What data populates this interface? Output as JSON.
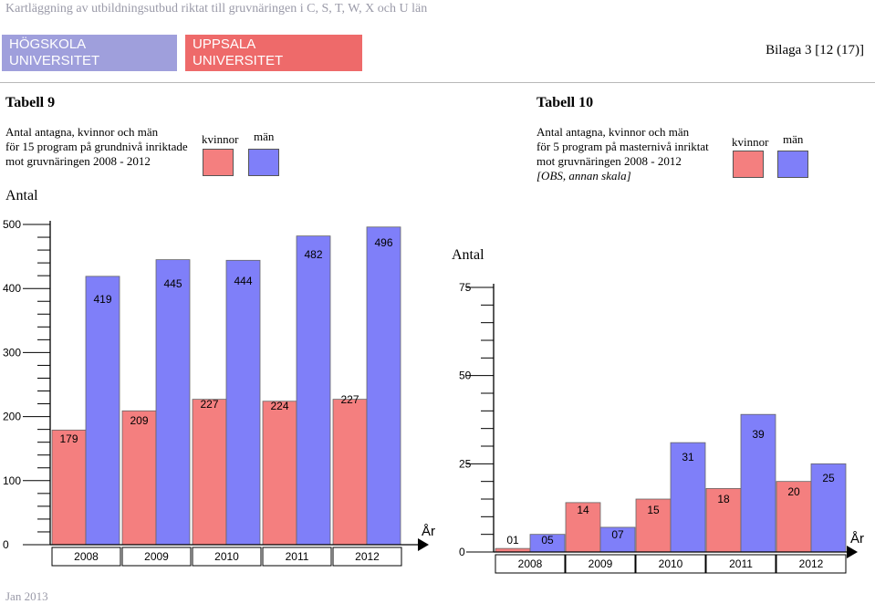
{
  "header": {
    "doc_title": "Kartläggning av utbildningsutbud riktat till gruvnäringen i C, S, T, W, X och U län",
    "logo_left": "HÖGSKOLA\nUNIVERSITET",
    "logo_right": "UPPSALA\nUNIVERSITET",
    "bilaga": "Bilaga 3 [12 (17)]"
  },
  "legend": {
    "kvinnor": "kvinnor",
    "man": "män"
  },
  "colors": {
    "kvinnor": "#f47f7f",
    "man": "#7f7ff9",
    "logo_left": "#9f9fdc",
    "logo_right": "#ee6a6a"
  },
  "footer": "Jan 2013",
  "chart_data": [
    {
      "type": "bar",
      "table_label": "Tabell 9",
      "caption_lines": [
        "Antal antagna, kvinnor och män",
        "för 15 program på grundnivå inriktade",
        "mot gruvnäringen 2008 - 2012"
      ],
      "ylabel": "Antal",
      "xlabel": "År",
      "categories": [
        "2008",
        "2009",
        "2010",
        "2011",
        "2012"
      ],
      "series": [
        {
          "name": "kvinnor",
          "values": [
            179,
            209,
            227,
            224,
            227
          ]
        },
        {
          "name": "män",
          "values": [
            419,
            445,
            444,
            482,
            496
          ]
        }
      ],
      "ylim": [
        0,
        500
      ],
      "yticks": [
        0,
        100,
        200,
        300,
        400,
        500
      ]
    },
    {
      "type": "bar",
      "table_label": "Tabell 10",
      "caption_lines": [
        "Antal antagna, kvinnor och män",
        "för 5 program på masternivå inriktat",
        "mot gruvnäringen 2008 - 2012",
        "[OBS, annan skala]"
      ],
      "ylabel": "Antal",
      "xlabel": "År",
      "categories": [
        "2008",
        "2009",
        "2010",
        "2011",
        "2012"
      ],
      "series": [
        {
          "name": "kvinnor",
          "values": [
            1,
            14,
            15,
            18,
            20
          ],
          "value_labels": [
            "01",
            "14",
            "15",
            "18",
            "20"
          ]
        },
        {
          "name": "män",
          "values": [
            5,
            7,
            31,
            39,
            25
          ],
          "value_labels": [
            "05",
            "07",
            "31",
            "39",
            "25"
          ]
        }
      ],
      "ylim": [
        0,
        75
      ],
      "yticks": [
        0,
        25,
        50,
        75
      ]
    }
  ]
}
